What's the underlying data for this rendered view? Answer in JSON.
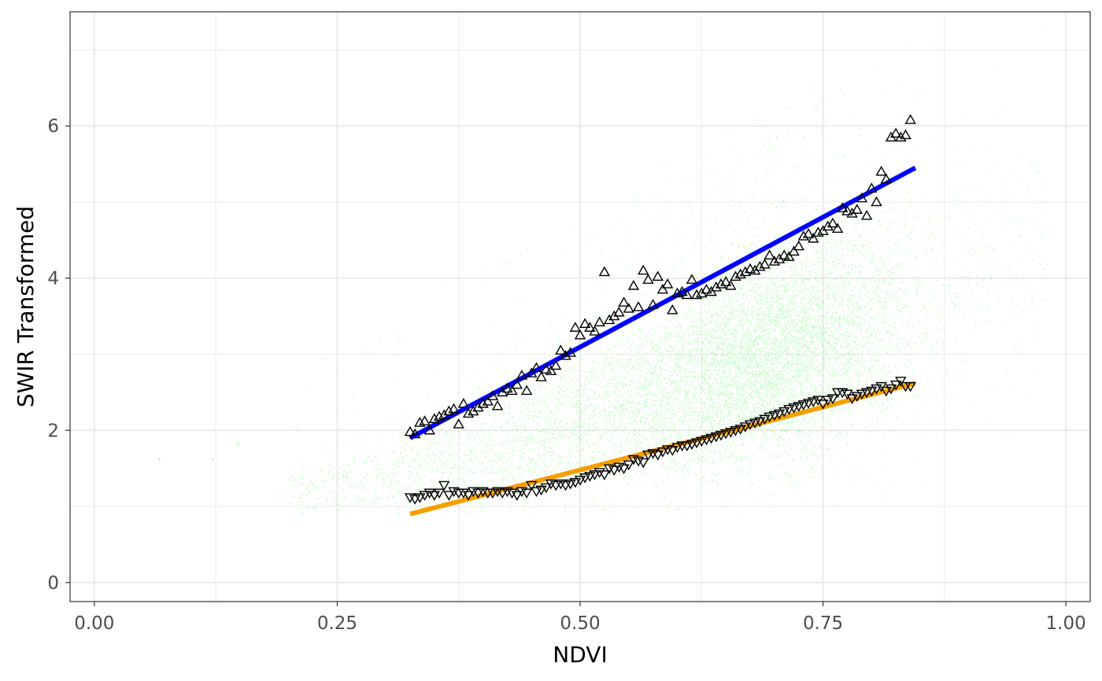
{
  "chart_data": {
    "type": "scatter",
    "title": "",
    "xlabel": "NDVI",
    "ylabel": "SWIR Transformed",
    "xlim": [
      -0.025,
      1.025
    ],
    "ylim": [
      -0.25,
      7.5
    ],
    "x_ticks": [
      0.0,
      0.25,
      0.5,
      0.75,
      1.0
    ],
    "x_tick_labels": [
      "0.00",
      "0.25",
      "0.50",
      "0.75",
      "1.00"
    ],
    "y_ticks": [
      0,
      2,
      4,
      6
    ],
    "y_tick_labels": [
      "0",
      "2",
      "4",
      "6"
    ],
    "grid": true,
    "legend": "none",
    "colors": {
      "points": "#00ff00",
      "upper_line": "#0000ff",
      "lower_line": "#f5a000",
      "markers": "#000000",
      "panel_border": "#333333",
      "grid": "#ebebeb"
    },
    "scatter_cloud": {
      "description_shown": "dense cloud of semi-transparent green points",
      "x_range": [
        0.07,
        1.0
      ],
      "y_range": [
        0.9,
        7.3
      ],
      "densest_near": [
        0.7,
        3.0
      ]
    },
    "upper_line": {
      "x": [
        0.325,
        0.845
      ],
      "y": [
        1.9,
        5.45
      ]
    },
    "lower_line": {
      "x": [
        0.325,
        0.845
      ],
      "y": [
        0.9,
        2.62
      ]
    },
    "upper_points": {
      "marker": "triangle-up",
      "x": [
        0.325,
        0.33,
        0.335,
        0.34,
        0.345,
        0.35,
        0.355,
        0.36,
        0.365,
        0.37,
        0.375,
        0.38,
        0.385,
        0.39,
        0.395,
        0.4,
        0.405,
        0.41,
        0.415,
        0.42,
        0.425,
        0.43,
        0.435,
        0.44,
        0.445,
        0.45,
        0.455,
        0.46,
        0.465,
        0.47,
        0.475,
        0.48,
        0.485,
        0.49,
        0.495,
        0.5,
        0.505,
        0.51,
        0.515,
        0.52,
        0.525,
        0.53,
        0.535,
        0.54,
        0.545,
        0.55,
        0.555,
        0.56,
        0.565,
        0.57,
        0.575,
        0.58,
        0.585,
        0.59,
        0.595,
        0.6,
        0.605,
        0.61,
        0.615,
        0.62,
        0.625,
        0.63,
        0.635,
        0.64,
        0.645,
        0.65,
        0.655,
        0.66,
        0.665,
        0.67,
        0.675,
        0.68,
        0.685,
        0.69,
        0.695,
        0.7,
        0.705,
        0.71,
        0.715,
        0.72,
        0.725,
        0.73,
        0.735,
        0.74,
        0.745,
        0.75,
        0.755,
        0.76,
        0.765,
        0.77,
        0.775,
        0.78,
        0.785,
        0.79,
        0.795,
        0.8,
        0.805,
        0.81,
        0.815,
        0.82,
        0.825,
        0.83,
        0.835,
        0.84
      ],
      "y": [
        1.98,
        1.95,
        2.1,
        2.12,
        2.0,
        2.15,
        2.18,
        2.2,
        2.25,
        2.28,
        2.08,
        2.35,
        2.22,
        2.25,
        2.3,
        2.35,
        2.38,
        2.45,
        2.32,
        2.5,
        2.55,
        2.52,
        2.6,
        2.72,
        2.52,
        2.75,
        2.82,
        2.7,
        2.8,
        2.78,
        2.85,
        3.05,
        2.98,
        3.02,
        3.35,
        3.25,
        3.4,
        3.35,
        3.3,
        3.42,
        4.08,
        3.45,
        3.5,
        3.55,
        3.68,
        3.6,
        3.9,
        3.62,
        4.1,
        3.98,
        3.65,
        4.02,
        3.85,
        3.92,
        3.58,
        3.8,
        3.82,
        3.78,
        3.98,
        3.78,
        3.8,
        3.85,
        3.82,
        3.88,
        3.92,
        3.95,
        3.9,
        4.02,
        4.05,
        4.08,
        4.12,
        4.1,
        4.15,
        4.18,
        4.3,
        4.22,
        4.25,
        4.3,
        4.28,
        4.35,
        4.42,
        4.55,
        4.58,
        4.52,
        4.6,
        4.62,
        4.68,
        4.72,
        4.65,
        4.92,
        4.88,
        4.85,
        4.9,
        5.05,
        4.82,
        5.18,
        5.0,
        5.4,
        5.3,
        5.85,
        5.9,
        5.85,
        5.88,
        6.08
      ]
    },
    "lower_points": {
      "marker": "triangle-down",
      "x": [
        0.325,
        0.33,
        0.335,
        0.34,
        0.345,
        0.35,
        0.355,
        0.36,
        0.365,
        0.37,
        0.375,
        0.38,
        0.385,
        0.39,
        0.395,
        0.4,
        0.405,
        0.41,
        0.415,
        0.42,
        0.425,
        0.43,
        0.435,
        0.44,
        0.445,
        0.45,
        0.455,
        0.46,
        0.465,
        0.47,
        0.475,
        0.48,
        0.485,
        0.49,
        0.495,
        0.5,
        0.505,
        0.51,
        0.515,
        0.52,
        0.525,
        0.53,
        0.535,
        0.54,
        0.545,
        0.55,
        0.555,
        0.56,
        0.565,
        0.57,
        0.575,
        0.58,
        0.585,
        0.59,
        0.595,
        0.6,
        0.605,
        0.61,
        0.615,
        0.62,
        0.625,
        0.63,
        0.635,
        0.64,
        0.645,
        0.65,
        0.655,
        0.66,
        0.665,
        0.67,
        0.675,
        0.68,
        0.685,
        0.69,
        0.695,
        0.7,
        0.705,
        0.71,
        0.715,
        0.72,
        0.725,
        0.73,
        0.735,
        0.74,
        0.745,
        0.75,
        0.755,
        0.76,
        0.765,
        0.77,
        0.775,
        0.78,
        0.785,
        0.79,
        0.795,
        0.8,
        0.805,
        0.81,
        0.815,
        0.82,
        0.825,
        0.83,
        0.835,
        0.84
      ],
      "y": [
        1.12,
        1.1,
        1.12,
        1.15,
        1.18,
        1.15,
        1.18,
        1.28,
        1.15,
        1.2,
        1.18,
        1.18,
        1.15,
        1.2,
        1.18,
        1.2,
        1.18,
        1.18,
        1.2,
        1.18,
        1.2,
        1.18,
        1.15,
        1.2,
        1.18,
        1.28,
        1.2,
        1.22,
        1.25,
        1.3,
        1.28,
        1.3,
        1.28,
        1.3,
        1.32,
        1.35,
        1.38,
        1.4,
        1.42,
        1.45,
        1.42,
        1.5,
        1.48,
        1.52,
        1.5,
        1.55,
        1.62,
        1.6,
        1.58,
        1.68,
        1.7,
        1.68,
        1.72,
        1.75,
        1.74,
        1.78,
        1.8,
        1.8,
        1.82,
        1.84,
        1.86,
        1.88,
        1.9,
        1.92,
        1.94,
        1.96,
        1.98,
        2.0,
        2.02,
        2.05,
        2.08,
        2.1,
        2.12,
        2.15,
        2.18,
        2.2,
        2.22,
        2.25,
        2.28,
        2.3,
        2.32,
        2.34,
        2.36,
        2.38,
        2.4,
        2.35,
        2.4,
        2.42,
        2.5,
        2.5,
        2.48,
        2.42,
        2.45,
        2.48,
        2.5,
        2.52,
        2.55,
        2.58,
        2.52,
        2.55,
        2.6,
        2.65,
        2.58,
        2.58
      ]
    }
  }
}
